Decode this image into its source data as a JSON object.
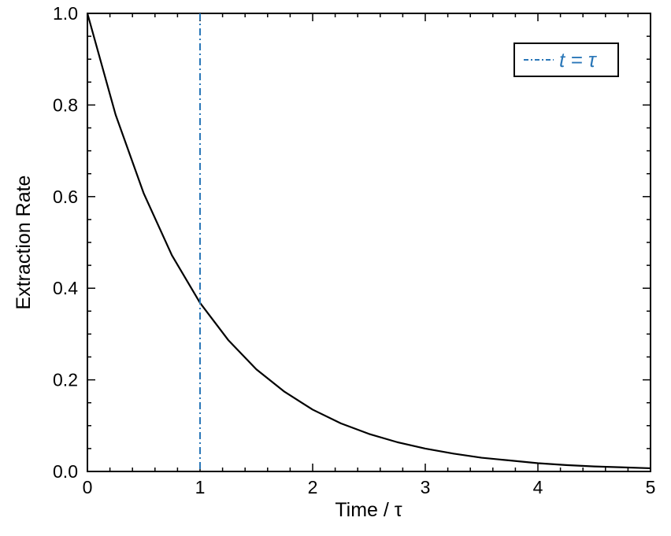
{
  "chart_data": {
    "type": "line",
    "title": "",
    "xlabel": "Time / τ",
    "ylabel": "Extraction Rate",
    "xlim": [
      0,
      5
    ],
    "ylim": [
      0,
      1
    ],
    "x_ticks": [
      0,
      1,
      2,
      3,
      4,
      5
    ],
    "x_tick_labels": [
      "0",
      "1",
      "2",
      "3",
      "4",
      "5"
    ],
    "y_ticks": [
      0,
      0.2,
      0.4,
      0.6,
      0.8,
      1.0
    ],
    "y_tick_labels": [
      "0.0",
      "0.2",
      "0.4",
      "0.6",
      "0.8",
      "1.0"
    ],
    "grid": false,
    "legend_position": "top-right",
    "series": [
      {
        "color": "#000000",
        "style": "solid",
        "x": [
          0,
          0.25,
          0.5,
          0.75,
          1,
          1.25,
          1.5,
          1.75,
          2,
          2.25,
          2.5,
          2.75,
          3,
          3.25,
          3.5,
          3.75,
          4,
          4.25,
          4.5,
          4.75,
          5
        ],
        "y": [
          1.0,
          0.779,
          0.607,
          0.472,
          0.368,
          0.287,
          0.223,
          0.174,
          0.135,
          0.105,
          0.082,
          0.064,
          0.05,
          0.039,
          0.03,
          0.024,
          0.018,
          0.014,
          0.011,
          0.009,
          0.007
        ]
      }
    ],
    "vlines": [
      {
        "x": 1,
        "color": "#2a77b8",
        "style": "dashdot",
        "label": "t = τ"
      }
    ]
  }
}
